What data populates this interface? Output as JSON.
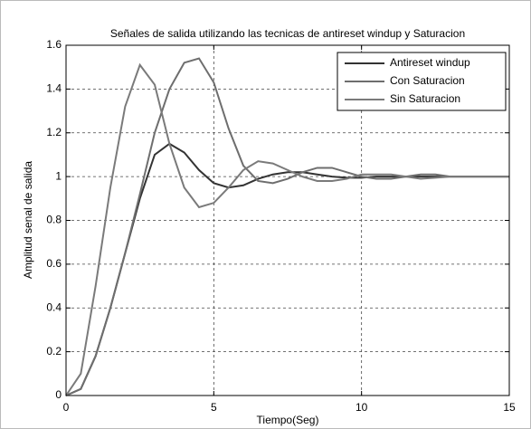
{
  "chart_data": {
    "type": "line",
    "title": "Señales de salida utilizando las tecnicas de antireset windup y Saturacion",
    "x_label": "Tiempo(Seg)",
    "y_label": "Amplitud senal de salida",
    "x": [
      0,
      0.5,
      1,
      1.5,
      2,
      2.5,
      3,
      3.5,
      4,
      4.5,
      5,
      5.5,
      6,
      6.5,
      7,
      7.5,
      8,
      8.5,
      9,
      9.5,
      10,
      10.5,
      11,
      11.5,
      12,
      12.5,
      13,
      13.5,
      14,
      14.5,
      15
    ],
    "series": [
      {
        "name": "Antireset windup",
        "color": "#333333",
        "values": [
          0,
          0.03,
          0.18,
          0.4,
          0.65,
          0.9,
          1.1,
          1.15,
          1.11,
          1.03,
          0.97,
          0.95,
          0.96,
          0.99,
          1.01,
          1.02,
          1.02,
          1.01,
          1.0,
          0.995,
          0.995,
          1.0,
          1.0,
          1.0,
          1.0,
          1.0,
          1.0,
          1.0,
          1.0,
          1.0,
          1.0
        ]
      },
      {
        "name": "Con Saturacion",
        "color": "#6e6e6e",
        "values": [
          0,
          0.03,
          0.18,
          0.4,
          0.65,
          0.92,
          1.2,
          1.4,
          1.52,
          1.54,
          1.43,
          1.22,
          1.05,
          0.98,
          0.97,
          0.99,
          1.02,
          1.04,
          1.04,
          1.02,
          1.0,
          0.99,
          0.99,
          1.0,
          1.01,
          1.01,
          1.0,
          1.0,
          1.0,
          1.0,
          1.0
        ]
      },
      {
        "name": "Sin Saturacion",
        "color": "#7a7a7a",
        "values": [
          0,
          0.1,
          0.5,
          0.95,
          1.32,
          1.51,
          1.42,
          1.15,
          0.95,
          0.86,
          0.88,
          0.95,
          1.03,
          1.07,
          1.06,
          1.03,
          1.0,
          0.98,
          0.98,
          0.99,
          1.01,
          1.01,
          1.01,
          1.0,
          0.99,
          0.995,
          1.0,
          1.0,
          1.0,
          1.0,
          1.0
        ]
      }
    ],
    "xlim": [
      0,
      15
    ],
    "xticks": [
      0,
      5,
      10,
      15
    ],
    "ylim": [
      0,
      1.6
    ],
    "yticks": [
      0,
      0.2,
      0.4,
      0.6,
      0.8,
      1,
      1.2,
      1.4,
      1.6
    ],
    "grid": true,
    "legend": "upper right"
  }
}
